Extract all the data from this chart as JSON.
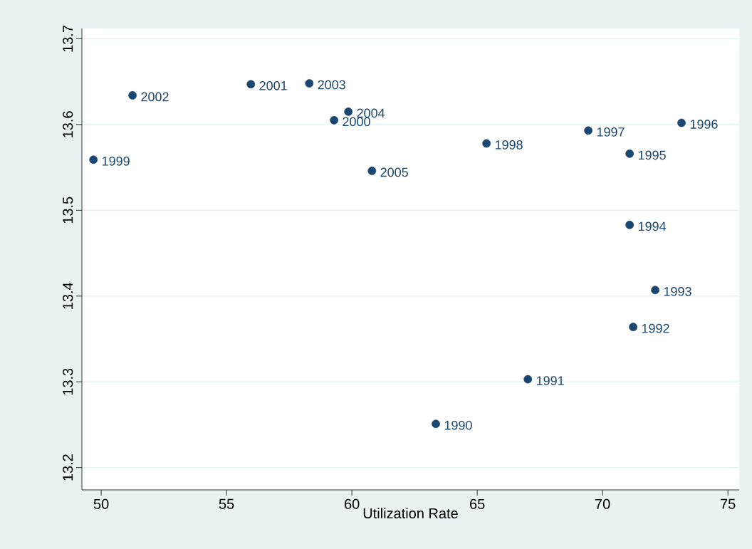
{
  "chart_data": {
    "type": "scatter",
    "xlabel": "Utilization Rate",
    "x": [
      63.35,
      67.02,
      71.22,
      72.1,
      71.08,
      71.08,
      73.15,
      69.43,
      65.37,
      49.69,
      59.29,
      55.97,
      51.25,
      58.3,
      59.86,
      60.8
    ],
    "series": [
      {
        "color": "#1a476f",
        "values": [
          13.251,
          13.303,
          13.364,
          13.407,
          13.483,
          13.566,
          13.602,
          13.593,
          13.578,
          13.559,
          13.605,
          13.647,
          13.634,
          13.648,
          13.615,
          13.546
        ]
      }
    ],
    "annotations": [
      {
        "text": "1990",
        "x": 63.35,
        "y": 13.251
      },
      {
        "text": "1991",
        "x": 67.02,
        "y": 13.303
      },
      {
        "text": "1992",
        "x": 71.22,
        "y": 13.364
      },
      {
        "text": "1993",
        "x": 72.1,
        "y": 13.407
      },
      {
        "text": "1994",
        "x": 71.08,
        "y": 13.483
      },
      {
        "text": "1995",
        "x": 71.08,
        "y": 13.566
      },
      {
        "text": "1996",
        "x": 73.15,
        "y": 13.602
      },
      {
        "text": "1997",
        "x": 69.43,
        "y": 13.593
      },
      {
        "text": "1998",
        "x": 65.37,
        "y": 13.578
      },
      {
        "text": "1999",
        "x": 49.69,
        "y": 13.559
      },
      {
        "text": "2000",
        "x": 59.29,
        "y": 13.605
      },
      {
        "text": "2001",
        "x": 55.97,
        "y": 13.647
      },
      {
        "text": "2002",
        "x": 51.25,
        "y": 13.634
      },
      {
        "text": "2003",
        "x": 58.3,
        "y": 13.648
      },
      {
        "text": "2004",
        "x": 59.86,
        "y": 13.615
      },
      {
        "text": "2005",
        "x": 60.8,
        "y": 13.546
      }
    ],
    "xlim": [
      49.23,
      75.45
    ],
    "ylim": [
      13.174,
      13.712
    ],
    "xticks": [
      50,
      55,
      60,
      65,
      70,
      75
    ],
    "yticks": [
      13.2,
      13.3,
      13.4,
      13.5,
      13.6,
      13.7
    ],
    "grid": "y",
    "marker": "circle"
  }
}
